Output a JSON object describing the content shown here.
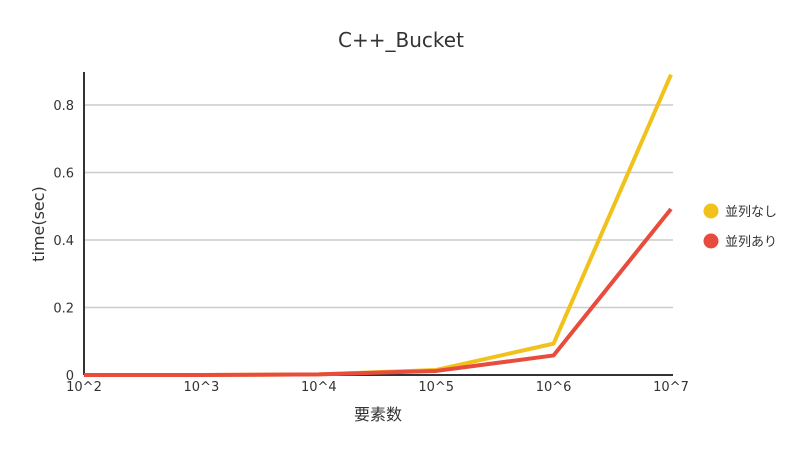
{
  "chart_data": {
    "type": "line",
    "title": "C++_Bucket",
    "xlabel": "要素数",
    "ylabel": "time(sec)",
    "categories": [
      "10^2",
      "10^3",
      "10^4",
      "10^5",
      "10^6",
      "10^7"
    ],
    "ylim": [
      0,
      0.8
    ],
    "yticks": [
      "0",
      "0.2",
      "0.4",
      "0.6",
      "0.8"
    ],
    "grid": true,
    "legend_position": "right",
    "series": [
      {
        "name": "並列なし",
        "color": "#f1c21b",
        "values": [
          0.0,
          0.0,
          0.002,
          0.015,
          0.093,
          0.89
        ]
      },
      {
        "name": "並列あり",
        "color": "#e74c3c",
        "values": [
          0.0,
          0.0,
          0.002,
          0.012,
          0.058,
          0.492
        ]
      }
    ]
  }
}
